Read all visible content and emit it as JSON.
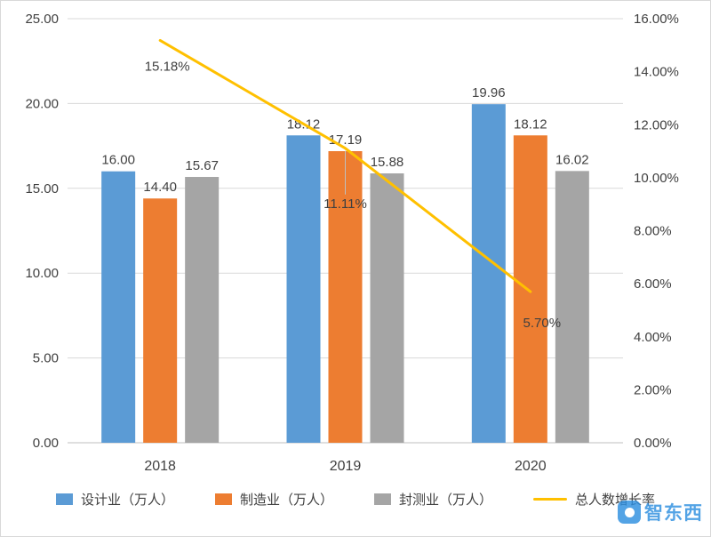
{
  "chart_data": {
    "type": "bar",
    "subtype": "grouped-bars-with-line",
    "title": "",
    "xlabel": "",
    "ylabel": "",
    "categories": [
      "2018",
      "2019",
      "2020"
    ],
    "series": [
      {
        "name": "设计业（万人）",
        "kind": "bar",
        "color": "#5B9BD5",
        "axis": "left",
        "values": [
          16.0,
          18.12,
          19.96
        ],
        "labels": [
          "16.00",
          "18.12",
          "19.96"
        ]
      },
      {
        "name": "制造业（万人）",
        "kind": "bar",
        "color": "#ED7D31",
        "axis": "left",
        "values": [
          14.4,
          17.19,
          18.12
        ],
        "labels": [
          "14.40",
          "17.19",
          "18.12"
        ]
      },
      {
        "name": "封测业（万人）",
        "kind": "bar",
        "color": "#A5A5A5",
        "axis": "left",
        "values": [
          15.67,
          15.88,
          16.02
        ],
        "labels": [
          "15.67",
          "15.88",
          "16.02"
        ]
      },
      {
        "name": "总人数增长率",
        "kind": "line",
        "color": "#FFC000",
        "axis": "right",
        "values": [
          15.18,
          11.11,
          5.7
        ],
        "labels": [
          "15.18%",
          "11.11%",
          "5.70%"
        ]
      }
    ],
    "left_axis": {
      "min": 0,
      "max": 25,
      "step": 5,
      "ticks": [
        "0.00",
        "5.00",
        "10.00",
        "15.00",
        "20.00",
        "25.00"
      ]
    },
    "right_axis": {
      "min": 0,
      "max": 16,
      "step": 2,
      "ticks": [
        "0.00%",
        "2.00%",
        "4.00%",
        "6.00%",
        "8.00%",
        "10.00%",
        "12.00%",
        "14.00%",
        "16.00%"
      ]
    },
    "grid": true,
    "legend_position": "bottom",
    "colors": {
      "gridline": "#D9D9D9",
      "axis_line": "#BFBFBF",
      "tick_text": "#404040",
      "label_text": "#404040"
    }
  },
  "watermark": {
    "text": "智东西",
    "color": "#2E8FE0"
  }
}
